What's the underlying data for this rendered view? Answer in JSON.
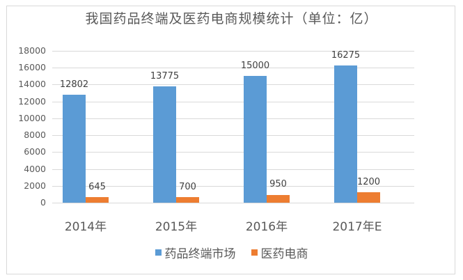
{
  "chart_data": {
    "type": "bar",
    "title": "我国药品终端及医药电商规模统计（单位：亿）",
    "categories": [
      "2014年",
      "2015年",
      "2016年",
      "2017年E"
    ],
    "series": [
      {
        "name": "药品终端市场",
        "color": "#5b9bd5",
        "values": [
          12802,
          13775,
          15000,
          16275
        ]
      },
      {
        "name": "医药电商",
        "color": "#ed7d31",
        "values": [
          645,
          700,
          950,
          1200
        ]
      }
    ],
    "xlabel": "",
    "ylabel": "",
    "ylim": [
      0,
      18000
    ],
    "yticks": [
      0,
      2000,
      4000,
      6000,
      8000,
      10000,
      12000,
      14000,
      16000,
      18000
    ],
    "grid": true,
    "legend_position": "bottom",
    "data_labels": true
  }
}
